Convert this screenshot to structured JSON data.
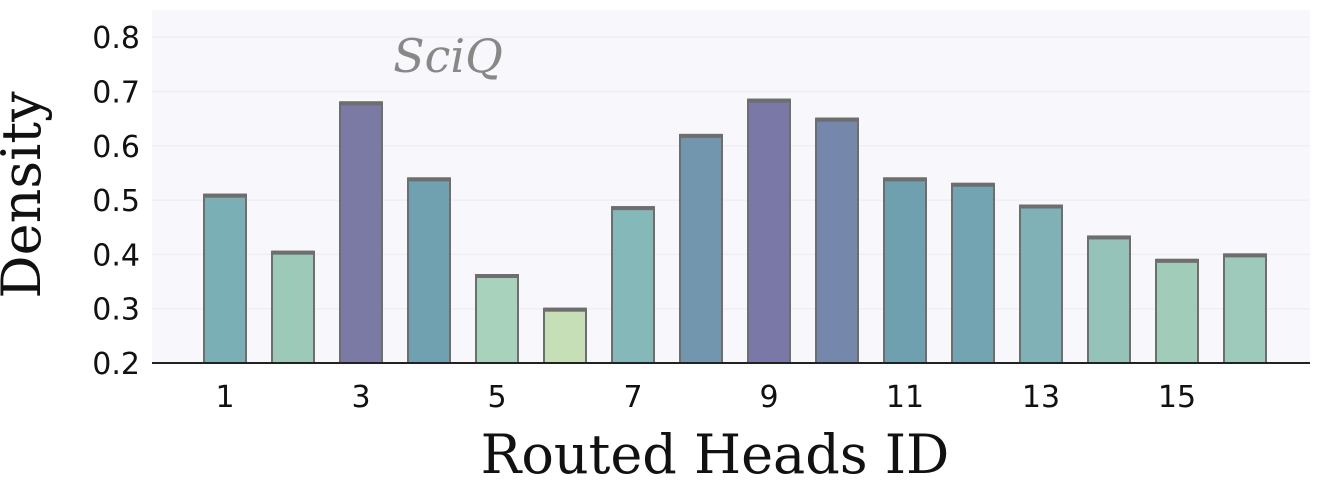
{
  "chart_data": {
    "type": "bar",
    "title": "SciQ",
    "xlabel": "Routed Heads ID",
    "ylabel": "Density",
    "categories": [
      "1",
      "2",
      "3",
      "4",
      "5",
      "6",
      "7",
      "8",
      "9",
      "10",
      "11",
      "12",
      "13",
      "14",
      "15",
      "16"
    ],
    "x_tick_labels": [
      "1",
      "3",
      "5",
      "7",
      "9",
      "11",
      "13",
      "15"
    ],
    "values": [
      0.51,
      0.405,
      0.68,
      0.54,
      0.362,
      0.3,
      0.487,
      0.62,
      0.685,
      0.65,
      0.54,
      0.53,
      0.49,
      0.433,
      0.39,
      0.4
    ],
    "ylim": [
      0.2,
      0.85
    ],
    "y_ticks": [
      "0.2",
      "0.3",
      "0.4",
      "0.5",
      "0.6",
      "0.7",
      "0.8"
    ],
    "grid": true,
    "bar_colors": [
      "#7aafb5",
      "#9dc9b9",
      "#7b7aa5",
      "#6fa1b1",
      "#a9d2bd",
      "#c6dfb7",
      "#84b8b9",
      "#7196ae",
      "#7a78a6",
      "#7587aa",
      "#6fa0b0",
      "#73a4b2",
      "#80b1b7",
      "#95c3ba",
      "#a1ccba",
      "#9dcaba"
    ],
    "bar_edge_color": "#6e6e6e",
    "plot_background": "#f8f8fc"
  }
}
